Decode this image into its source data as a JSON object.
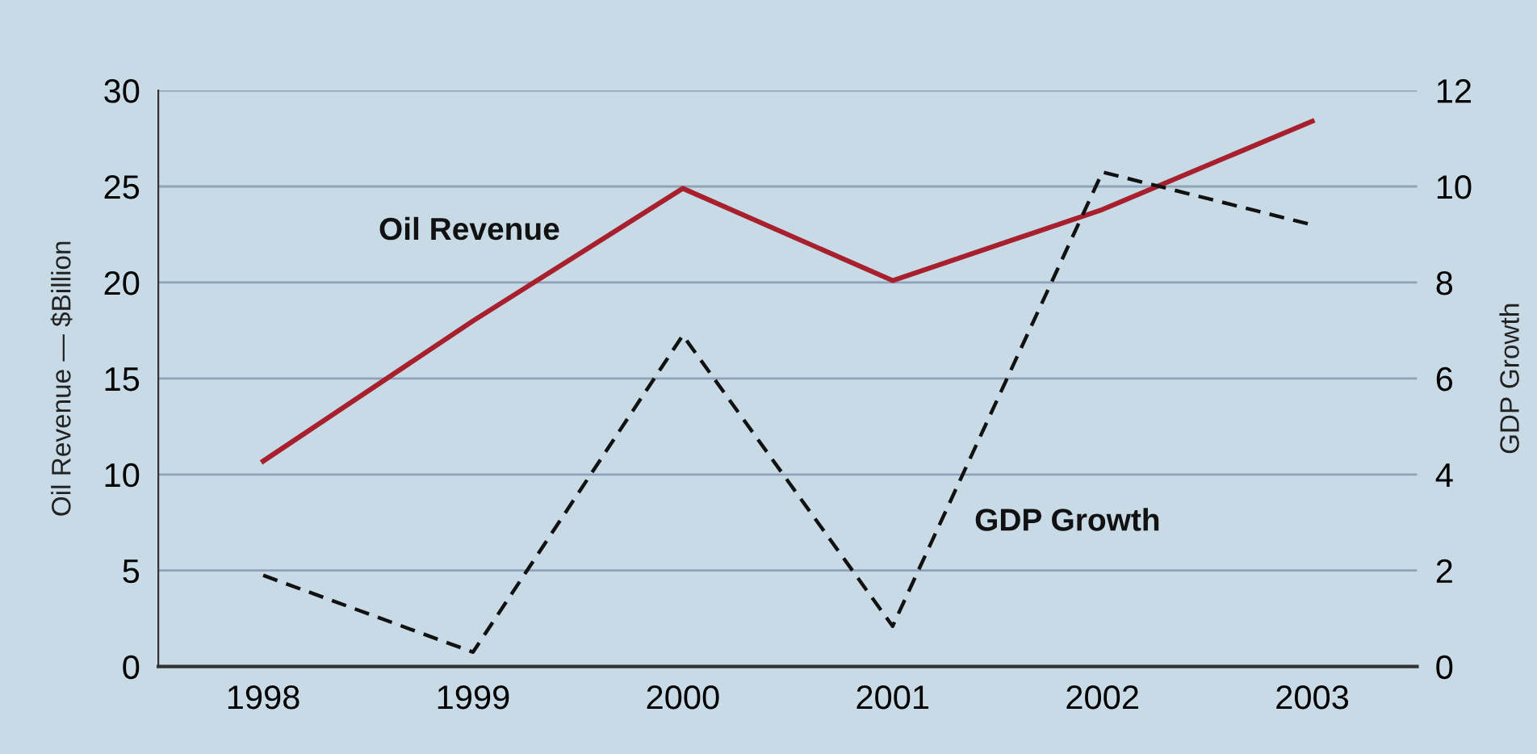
{
  "chart_data": {
    "type": "line",
    "ylabel": "Oil Revenue — $Billion",
    "y2label": "GDP Growth",
    "categories": [
      "1998",
      "1999",
      "2000",
      "2001",
      "2002",
      "2003"
    ],
    "series": [
      {
        "name": "Oil Revenue",
        "color": "#a8202e",
        "line_style": "solid",
        "values": [
          10.7,
          18.0,
          24.9,
          20.1,
          23.8,
          28.4
        ]
      },
      {
        "name": "GDP Growth",
        "color": "#111111",
        "line_style": "dashed",
        "axis": "y2",
        "values": [
          1.9,
          0.3,
          6.9,
          0.84,
          10.3,
          9.2
        ]
      }
    ],
    "ylim": [
      0,
      30
    ],
    "yticks": [
      0,
      5,
      10,
      15,
      20,
      25,
      30
    ],
    "y2lim": [
      0,
      12
    ],
    "y2ticks": [
      0,
      2,
      4,
      6,
      8,
      10,
      12
    ],
    "grid": "y",
    "legend": false
  }
}
